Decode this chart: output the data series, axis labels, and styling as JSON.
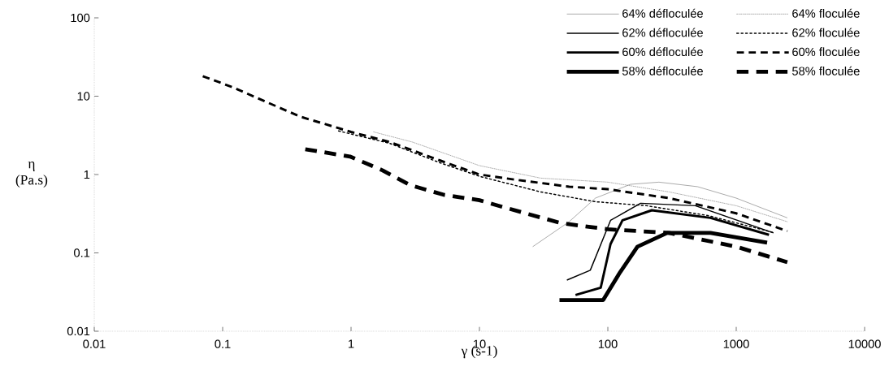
{
  "chart_data": {
    "type": "line",
    "xlabel": "γ (s-1)",
    "ylabel": "η (Pa.s)",
    "log": "xy",
    "xlim": [
      0.01,
      10000
    ],
    "ylim": [
      0.01,
      100
    ],
    "xticks": [
      0.01,
      0.1,
      1,
      10,
      100,
      1000,
      10000
    ],
    "yticks": [
      0.01,
      0.1,
      1,
      10,
      100
    ],
    "legend": "top right",
    "grid": false,
    "marker": "none",
    "series": [
      {
        "name": "64% défloculée",
        "color": "#808080",
        "line_style": "solid",
        "x": [
          26,
          50,
          80,
          150,
          250,
          500,
          1000,
          2500
        ],
        "values": [
          0.12,
          0.25,
          0.5,
          0.75,
          0.8,
          0.7,
          0.5,
          0.28
        ]
      },
      {
        "name": "64% floculée",
        "color": "#808080",
        "line_style": "dotted",
        "x": [
          1.5,
          3,
          10,
          30,
          100,
          300,
          1000,
          2500
        ],
        "values": [
          3.5,
          2.6,
          1.3,
          0.9,
          0.8,
          0.6,
          0.4,
          0.25
        ]
      },
      {
        "name": "62% défloculée",
        "color": "#000000",
        "line_style": "solid",
        "x": [
          48,
          73,
          105,
          180,
          480,
          1950
        ],
        "values": [
          0.045,
          0.06,
          0.26,
          0.43,
          0.4,
          0.18
        ]
      },
      {
        "name": "62% floculée",
        "color": "#000000",
        "line_style": "dotted",
        "x": [
          0.8,
          2,
          5,
          10,
          30,
          80,
          200,
          600,
          2000
        ],
        "values": [
          3.6,
          2.5,
          1.4,
          0.95,
          0.6,
          0.45,
          0.4,
          0.3,
          0.18
        ]
      },
      {
        "name": "60% défloculée",
        "color": "#000000",
        "line_style": "solid",
        "x": [
          56,
          88,
          105,
          130,
          220,
          630,
          1800
        ],
        "values": [
          0.029,
          0.036,
          0.13,
          0.26,
          0.35,
          0.28,
          0.17
        ]
      },
      {
        "name": "60% floculée",
        "color": "#000000",
        "line_style": "dashed",
        "x": [
          0.07,
          0.12,
          0.2,
          0.4,
          1,
          2,
          5,
          10,
          20,
          50,
          100,
          300,
          1000,
          2500
        ],
        "values": [
          18,
          13,
          9,
          5.5,
          3.5,
          2.6,
          1.5,
          1.0,
          0.85,
          0.7,
          0.65,
          0.5,
          0.32,
          0.19
        ]
      },
      {
        "name": "58% défloculée",
        "color": "#000000",
        "line_style": "solid",
        "x": [
          42,
          92,
          124,
          170,
          290,
          630,
          1740
        ],
        "values": [
          0.025,
          0.025,
          0.056,
          0.12,
          0.18,
          0.18,
          0.135
        ]
      },
      {
        "name": "58% floculée",
        "color": "#000000",
        "line_style": "dashed",
        "x": [
          0.44,
          0.98,
          1.76,
          2.9,
          5.3,
          10,
          15.7,
          43,
          100,
          300,
          1000,
          2500
        ],
        "values": [
          2.1,
          1.7,
          1.13,
          0.73,
          0.55,
          0.47,
          0.38,
          0.24,
          0.2,
          0.18,
          0.12,
          0.076
        ]
      }
    ]
  }
}
